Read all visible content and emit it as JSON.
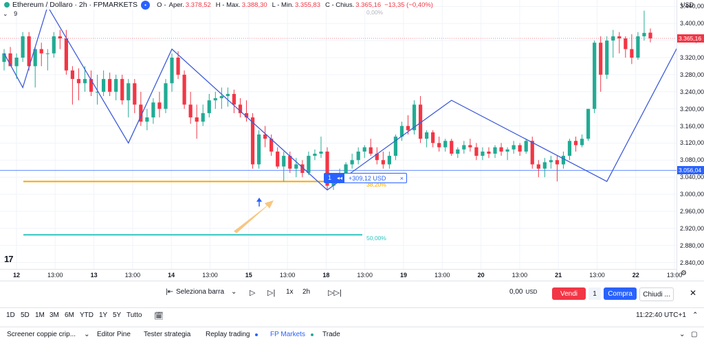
{
  "legend": {
    "symbol": "Ethereum / Dollaro · 2h · FPMARKETS",
    "open_label": "O",
    "open_key": "Aper.",
    "open": "3.378,52",
    "high_key": "H - Max.",
    "high": "3.388,30",
    "low_key": "L - Min.",
    "low": "3.355,83",
    "close_key": "C - Chius.",
    "close": "3.365,16",
    "change": "−13,35 (−0,40%)",
    "indicator_count": "9"
  },
  "price_scale": {
    "currency": "USD",
    "ticks": [
      "3.440,00",
      "3.400,00",
      "3.360,00",
      "3.320,00",
      "3.280,00",
      "3.240,00",
      "3.200,00",
      "3.160,00",
      "3.120,00",
      "3.080,00",
      "3.040,00",
      "3.000,00",
      "2.960,00",
      "2.920,00",
      "2.880,00",
      "2.840,00"
    ],
    "current_price_tag": "3.365,16",
    "crosshair_price_tag": "3.056,04"
  },
  "time_scale": {
    "ticks": [
      "12",
      "13:00",
      "13",
      "13:00",
      "14",
      "13:00",
      "15",
      "13:00",
      "18",
      "13:00",
      "19",
      "13:00",
      "20",
      "13:00",
      "21",
      "13:00",
      "22",
      "13:00"
    ]
  },
  "fib_levels": [
    {
      "label": "0,00%",
      "color": "#b2b5be"
    },
    {
      "label": "38,20%",
      "color": "#f7a600"
    },
    {
      "label": "50,00%",
      "color": "#2fc4c0"
    }
  ],
  "ruler": {
    "count": "1",
    "value": "+309,12 USD",
    "close": "×"
  },
  "replay": {
    "select_bar": "Seleziona barra",
    "speed": "1x",
    "interval": "2h",
    "pnl": "0,00",
    "pnl_currency": "USD",
    "sell": "Vendi",
    "qty": "1",
    "buy": "Compra",
    "close": "Chiudi ..."
  },
  "timeframes": [
    "1D",
    "5D",
    "1M",
    "3M",
    "6M",
    "YTD",
    "1Y",
    "5Y",
    "Tutto"
  ],
  "clock": "11:22:40 UTC+1",
  "bottom_tabs": [
    {
      "label": "Screener coppie crip..."
    },
    {
      "label": "Editor Pine"
    },
    {
      "label": "Tester strategia"
    },
    {
      "label": "Replay trading"
    },
    {
      "label": "FP Markets"
    },
    {
      "label": "Trade"
    }
  ],
  "colors": {
    "up": "#22ab94",
    "down": "#f23645",
    "line": "#3d5bd8",
    "accent": "#2962ff"
  },
  "chart_data": {
    "type": "candlestick",
    "candles": [
      {
        "o": 3310,
        "h": 3340,
        "l": 3290,
        "c": 3330
      },
      {
        "o": 3330,
        "h": 3345,
        "l": 3300,
        "c": 3300
      },
      {
        "o": 3300,
        "h": 3330,
        "l": 3270,
        "c": 3320
      },
      {
        "o": 3320,
        "h": 3380,
        "l": 3310,
        "c": 3370
      },
      {
        "o": 3370,
        "h": 3380,
        "l": 3290,
        "c": 3300
      },
      {
        "o": 3300,
        "h": 3345,
        "l": 3250,
        "c": 3340
      },
      {
        "o": 3340,
        "h": 3355,
        "l": 3300,
        "c": 3330
      },
      {
        "o": 3330,
        "h": 3340,
        "l": 3290,
        "c": 3330
      },
      {
        "o": 3330,
        "h": 3380,
        "l": 3320,
        "c": 3370
      },
      {
        "o": 3370,
        "h": 3385,
        "l": 3340,
        "c": 3365
      },
      {
        "o": 3365,
        "h": 3385,
        "l": 3280,
        "c": 3290
      },
      {
        "o": 3290,
        "h": 3300,
        "l": 3210,
        "c": 3270
      },
      {
        "o": 3270,
        "h": 3295,
        "l": 3220,
        "c": 3260
      },
      {
        "o": 3260,
        "h": 3300,
        "l": 3240,
        "c": 3270
      },
      {
        "o": 3270,
        "h": 3290,
        "l": 3230,
        "c": 3240
      },
      {
        "o": 3240,
        "h": 3280,
        "l": 3210,
        "c": 3240
      },
      {
        "o": 3240,
        "h": 3290,
        "l": 3230,
        "c": 3270
      },
      {
        "o": 3270,
        "h": 3285,
        "l": 3230,
        "c": 3240
      },
      {
        "o": 3240,
        "h": 3280,
        "l": 3220,
        "c": 3270
      },
      {
        "o": 3270,
        "h": 3280,
        "l": 3210,
        "c": 3220
      },
      {
        "o": 3220,
        "h": 3270,
        "l": 3180,
        "c": 3260
      },
      {
        "o": 3260,
        "h": 3270,
        "l": 3190,
        "c": 3210
      },
      {
        "o": 3210,
        "h": 3240,
        "l": 3160,
        "c": 3170
      },
      {
        "o": 3170,
        "h": 3200,
        "l": 3150,
        "c": 3180
      },
      {
        "o": 3180,
        "h": 3225,
        "l": 3165,
        "c": 3215
      },
      {
        "o": 3215,
        "h": 3240,
        "l": 3180,
        "c": 3200
      },
      {
        "o": 3200,
        "h": 3270,
        "l": 3190,
        "c": 3260
      },
      {
        "o": 3260,
        "h": 3330,
        "l": 3240,
        "c": 3320
      },
      {
        "o": 3320,
        "h": 3335,
        "l": 3270,
        "c": 3280
      },
      {
        "o": 3280,
        "h": 3290,
        "l": 3200,
        "c": 3210
      },
      {
        "o": 3210,
        "h": 3240,
        "l": 3165,
        "c": 3180
      },
      {
        "o": 3180,
        "h": 3210,
        "l": 3130,
        "c": 3170
      },
      {
        "o": 3170,
        "h": 3210,
        "l": 3160,
        "c": 3190
      },
      {
        "o": 3190,
        "h": 3235,
        "l": 3180,
        "c": 3220
      },
      {
        "o": 3220,
        "h": 3240,
        "l": 3200,
        "c": 3225
      },
      {
        "o": 3225,
        "h": 3250,
        "l": 3200,
        "c": 3230
      },
      {
        "o": 3230,
        "h": 3250,
        "l": 3205,
        "c": 3235
      },
      {
        "o": 3235,
        "h": 3245,
        "l": 3190,
        "c": 3210
      },
      {
        "o": 3210,
        "h": 3225,
        "l": 3180,
        "c": 3190
      },
      {
        "o": 3190,
        "h": 3220,
        "l": 3170,
        "c": 3180
      },
      {
        "o": 3180,
        "h": 3190,
        "l": 3060,
        "c": 3070
      },
      {
        "o": 3070,
        "h": 3150,
        "l": 3060,
        "c": 3140
      },
      {
        "o": 3140,
        "h": 3160,
        "l": 3110,
        "c": 3130
      },
      {
        "o": 3130,
        "h": 3140,
        "l": 3090,
        "c": 3100
      },
      {
        "o": 3100,
        "h": 3110,
        "l": 3060,
        "c": 3065
      },
      {
        "o": 3065,
        "h": 3100,
        "l": 3030,
        "c": 3090
      },
      {
        "o": 3090,
        "h": 3100,
        "l": 3050,
        "c": 3060
      },
      {
        "o": 3060,
        "h": 3085,
        "l": 3040,
        "c": 3070
      },
      {
        "o": 3070,
        "h": 3080,
        "l": 3040,
        "c": 3050
      },
      {
        "o": 3050,
        "h": 3100,
        "l": 3045,
        "c": 3090
      },
      {
        "o": 3090,
        "h": 3105,
        "l": 3080,
        "c": 3095
      },
      {
        "o": 3095,
        "h": 3135,
        "l": 3085,
        "c": 3100
      },
      {
        "o": 3100,
        "h": 3110,
        "l": 3010,
        "c": 3020
      },
      {
        "o": 3020,
        "h": 3040,
        "l": 3010,
        "c": 3030
      },
      {
        "o": 3030,
        "h": 3060,
        "l": 3025,
        "c": 3050
      },
      {
        "o": 3050,
        "h": 3075,
        "l": 3040,
        "c": 3070
      },
      {
        "o": 3070,
        "h": 3095,
        "l": 3060,
        "c": 3080
      },
      {
        "o": 3080,
        "h": 3110,
        "l": 3070,
        "c": 3100
      },
      {
        "o": 3100,
        "h": 3115,
        "l": 3085,
        "c": 3110
      },
      {
        "o": 3110,
        "h": 3130,
        "l": 3090,
        "c": 3095
      },
      {
        "o": 3095,
        "h": 3110,
        "l": 3070,
        "c": 3080
      },
      {
        "o": 3080,
        "h": 3100,
        "l": 3060,
        "c": 3070
      },
      {
        "o": 3070,
        "h": 3100,
        "l": 3060,
        "c": 3090
      },
      {
        "o": 3090,
        "h": 3140,
        "l": 3080,
        "c": 3135
      },
      {
        "o": 3135,
        "h": 3170,
        "l": 3125,
        "c": 3160
      },
      {
        "o": 3160,
        "h": 3185,
        "l": 3140,
        "c": 3150
      },
      {
        "o": 3150,
        "h": 3220,
        "l": 3140,
        "c": 3210
      },
      {
        "o": 3210,
        "h": 3230,
        "l": 3120,
        "c": 3130
      },
      {
        "o": 3130,
        "h": 3150,
        "l": 3110,
        "c": 3145
      },
      {
        "o": 3145,
        "h": 3150,
        "l": 3110,
        "c": 3120
      },
      {
        "o": 3120,
        "h": 3135,
        "l": 3100,
        "c": 3110
      },
      {
        "o": 3110,
        "h": 3130,
        "l": 3100,
        "c": 3125
      },
      {
        "o": 3125,
        "h": 3130,
        "l": 3090,
        "c": 3095
      },
      {
        "o": 3095,
        "h": 3110,
        "l": 3085,
        "c": 3105
      },
      {
        "o": 3105,
        "h": 3125,
        "l": 3095,
        "c": 3115
      },
      {
        "o": 3115,
        "h": 3130,
        "l": 3100,
        "c": 3110
      },
      {
        "o": 3110,
        "h": 3120,
        "l": 3080,
        "c": 3090
      },
      {
        "o": 3090,
        "h": 3110,
        "l": 3080,
        "c": 3100
      },
      {
        "o": 3100,
        "h": 3110,
        "l": 3085,
        "c": 3095
      },
      {
        "o": 3095,
        "h": 3115,
        "l": 3085,
        "c": 3110
      },
      {
        "o": 3110,
        "h": 3120,
        "l": 3090,
        "c": 3100
      },
      {
        "o": 3100,
        "h": 3110,
        "l": 3080,
        "c": 3105
      },
      {
        "o": 3105,
        "h": 3125,
        "l": 3095,
        "c": 3115
      },
      {
        "o": 3115,
        "h": 3120,
        "l": 3090,
        "c": 3100
      },
      {
        "o": 3100,
        "h": 3130,
        "l": 3095,
        "c": 3125
      },
      {
        "o": 3125,
        "h": 3135,
        "l": 3060,
        "c": 3070
      },
      {
        "o": 3070,
        "h": 3080,
        "l": 3040,
        "c": 3060
      },
      {
        "o": 3060,
        "h": 3085,
        "l": 3040,
        "c": 3075
      },
      {
        "o": 3075,
        "h": 3090,
        "l": 3060,
        "c": 3080
      },
      {
        "o": 3080,
        "h": 3090,
        "l": 3030,
        "c": 3070
      },
      {
        "o": 3070,
        "h": 3100,
        "l": 3060,
        "c": 3090
      },
      {
        "o": 3090,
        "h": 3130,
        "l": 3080,
        "c": 3125
      },
      {
        "o": 3125,
        "h": 3135,
        "l": 3100,
        "c": 3115
      },
      {
        "o": 3115,
        "h": 3140,
        "l": 3110,
        "c": 3130
      },
      {
        "o": 3130,
        "h": 3200,
        "l": 3125,
        "c": 3200
      },
      {
        "o": 3200,
        "h": 3360,
        "l": 3190,
        "c": 3355
      },
      {
        "o": 3355,
        "h": 3370,
        "l": 3240,
        "c": 3280
      },
      {
        "o": 3280,
        "h": 3370,
        "l": 3270,
        "c": 3360
      },
      {
        "o": 3360,
        "h": 3385,
        "l": 3320,
        "c": 3370
      },
      {
        "o": 3370,
        "h": 3380,
        "l": 3330,
        "c": 3365
      },
      {
        "o": 3365,
        "h": 3370,
        "l": 3320,
        "c": 3340
      },
      {
        "o": 3340,
        "h": 3375,
        "l": 3305,
        "c": 3320
      },
      {
        "o": 3320,
        "h": 3380,
        "l": 3315,
        "c": 3370
      },
      {
        "o": 3370,
        "h": 3430,
        "l": 3360,
        "c": 3378
      },
      {
        "o": 3378.52,
        "h": 3388.3,
        "l": 3355.83,
        "c": 3365.16
      }
    ],
    "zigzag": [
      [
        0,
        3330
      ],
      [
        3,
        3250
      ],
      [
        7,
        3440
      ],
      [
        20,
        3120
      ],
      [
        27,
        3340
      ],
      [
        52,
        3010
      ],
      [
        72,
        3220
      ],
      [
        97,
        3030
      ],
      [
        110,
        3390
      ],
      [
        118,
        3360
      ]
    ],
    "fib_prices": [
      3440,
      3030,
      2905
    ],
    "ylim": [
      2825,
      3455
    ]
  }
}
